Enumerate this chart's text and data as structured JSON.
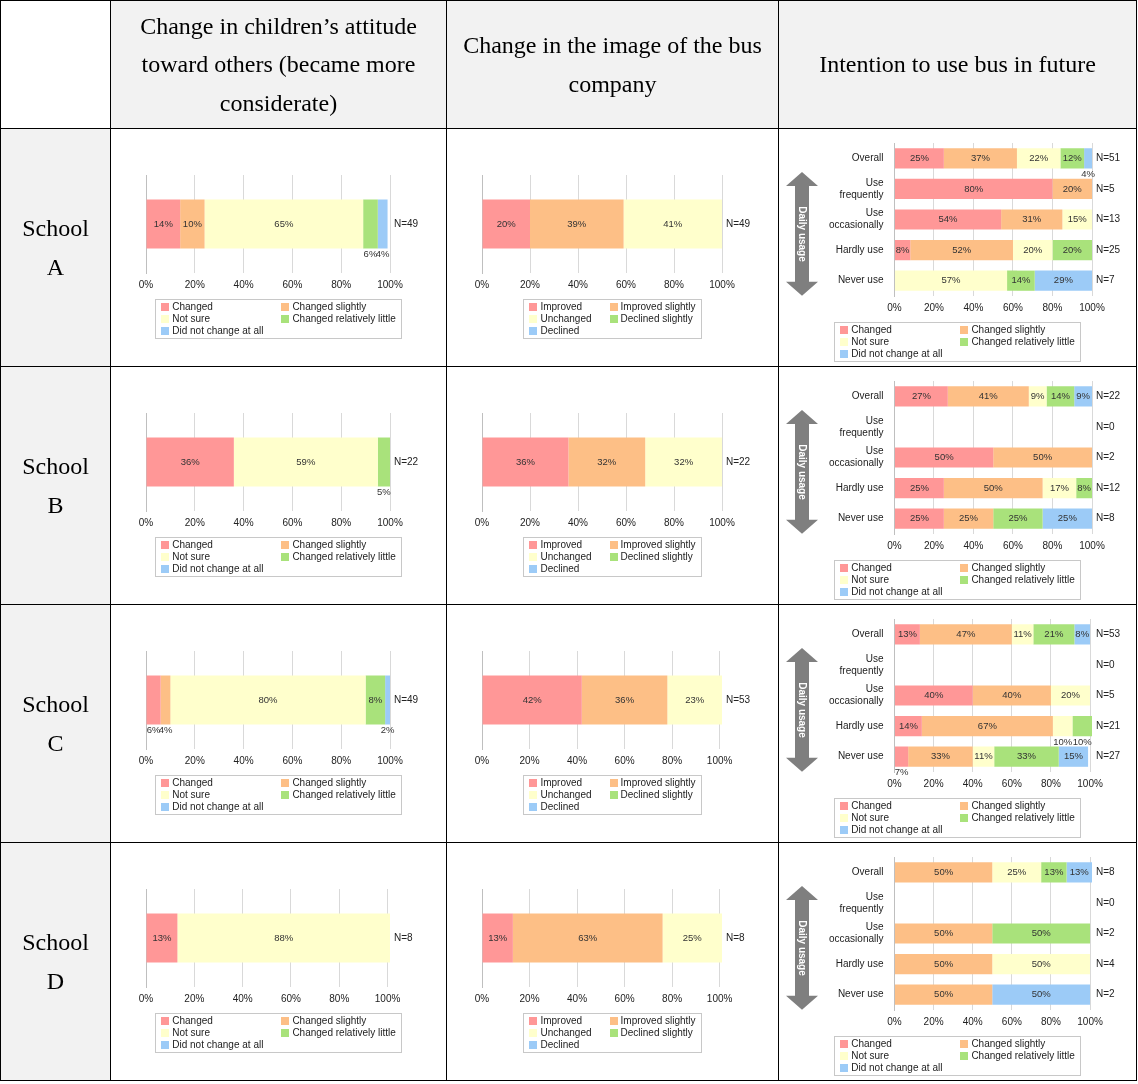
{
  "chart_data": [
    {
      "type": "other",
      "categories": [
        "Change in children’s attitude toward others (became more considerate)",
        "Change in the image of the bus company",
        "Intention to use bus in future"
      ],
      "y_categories": [
        "School A",
        "School B",
        "School C",
        "School D"
      ]
    },
    {
      "type": "bar",
      "orientation": "horizontal",
      "stacked": true,
      "grid": "x",
      "legend": "bottom",
      "xlim": [
        0,
        100
      ],
      "xticks": [
        {
          "value": 0,
          "label": "0%"
        },
        {
          "value": 20,
          "label": "20%"
        },
        {
          "value": 40,
          "label": "40%"
        },
        {
          "value": 60,
          "label": "60%"
        },
        {
          "value": 80,
          "label": "80%"
        },
        {
          "value": 100,
          "label": "100%"
        }
      ],
      "categories": [
        null
      ],
      "annotations": [
        "N=49"
      ],
      "series": [
        {
          "name": "Changed",
          "color": "#ff9797",
          "values": [
            14
          ],
          "value_labels": [
            "14%"
          ]
        },
        {
          "name": "Changed slightly",
          "color": "#fdbf86",
          "values": [
            10
          ],
          "value_labels": [
            "10%"
          ]
        },
        {
          "name": "Not sure",
          "color": "#ffffcc",
          "values": [
            65
          ],
          "value_labels": [
            "65%"
          ]
        },
        {
          "name": "Changed relatively little",
          "color": "#a9e27b",
          "values": [
            6
          ],
          "value_labels": [
            "6%"
          ]
        },
        {
          "name": "Did not change at all",
          "color": "#9ccbf7",
          "values": [
            4
          ],
          "value_labels": [
            "4%"
          ]
        }
      ]
    },
    {
      "type": "bar",
      "orientation": "horizontal",
      "stacked": true,
      "grid": "x",
      "legend": "bottom",
      "xlim": [
        0,
        100
      ],
      "xticks": [
        {
          "value": 0,
          "label": "0%"
        },
        {
          "value": 20,
          "label": "20%"
        },
        {
          "value": 40,
          "label": "40%"
        },
        {
          "value": 60,
          "label": "60%"
        },
        {
          "value": 80,
          "label": "80%"
        },
        {
          "value": 100,
          "label": "100%"
        }
      ],
      "categories": [
        null
      ],
      "annotations": [
        "N=49"
      ],
      "series": [
        {
          "name": "Improved",
          "color": "#ff9797",
          "values": [
            20
          ],
          "value_labels": [
            "20%"
          ]
        },
        {
          "name": "Improved slightly",
          "color": "#fdbf86",
          "values": [
            39
          ],
          "value_labels": [
            "39%"
          ]
        },
        {
          "name": "Unchanged",
          "color": "#ffffcc",
          "values": [
            41
          ],
          "value_labels": [
            "41%"
          ]
        },
        {
          "name": "Declined slightly",
          "color": "#a9e27b",
          "values": [
            null
          ],
          "value_labels": [
            null
          ]
        },
        {
          "name": "Declined",
          "color": "#9ccbf7",
          "values": [
            null
          ],
          "value_labels": [
            null
          ]
        }
      ]
    },
    {
      "type": "bar",
      "orientation": "horizontal",
      "stacked": true,
      "grid": "x",
      "legend": "bottom",
      "ylabel": "Daily usage",
      "xlim": [
        0,
        100
      ],
      "xticks": [
        {
          "value": 0,
          "label": "0%"
        },
        {
          "value": 20,
          "label": "20%"
        },
        {
          "value": 40,
          "label": "40%"
        },
        {
          "value": 60,
          "label": "60%"
        },
        {
          "value": 80,
          "label": "80%"
        },
        {
          "value": 100,
          "label": "100%"
        }
      ],
      "categories": [
        "Overall",
        "Use frequently",
        "Use occasionally",
        "Hardly use",
        "Never use"
      ],
      "annotations": [
        "N=51",
        "N=5",
        "N=13",
        "N=25",
        "N=7"
      ],
      "series": [
        {
          "name": "Changed",
          "color": "#ff9797",
          "values": [
            25,
            80,
            54,
            8,
            null
          ],
          "value_labels": [
            "25%",
            "80%",
            "54%",
            "8%",
            null
          ]
        },
        {
          "name": "Changed slightly",
          "color": "#fdbf86",
          "values": [
            37,
            20,
            31,
            52,
            null
          ],
          "value_labels": [
            "37%",
            "20%",
            "31%",
            "52%",
            null
          ]
        },
        {
          "name": "Not sure",
          "color": "#ffffcc",
          "values": [
            22,
            null,
            15,
            20,
            57
          ],
          "value_labels": [
            "22%",
            null,
            "15%",
            "20%",
            "57%"
          ]
        },
        {
          "name": "Changed relatively little",
          "color": "#a9e27b",
          "values": [
            12,
            null,
            null,
            20,
            14
          ],
          "value_labels": [
            "12%",
            null,
            null,
            "20%",
            "14%"
          ]
        },
        {
          "name": "Did not change at all",
          "color": "#9ccbf7",
          "values": [
            4,
            null,
            null,
            null,
            29
          ],
          "value_labels": [
            "4%",
            null,
            null,
            null,
            "29%"
          ]
        }
      ]
    },
    {
      "type": "bar",
      "orientation": "horizontal",
      "stacked": true,
      "grid": "x",
      "legend": "bottom",
      "xlim": [
        0,
        100
      ],
      "xticks": [
        {
          "value": 0,
          "label": "0%"
        },
        {
          "value": 20,
          "label": "20%"
        },
        {
          "value": 40,
          "label": "40%"
        },
        {
          "value": 60,
          "label": "60%"
        },
        {
          "value": 80,
          "label": "80%"
        },
        {
          "value": 100,
          "label": "100%"
        }
      ],
      "categories": [
        null
      ],
      "annotations": [
        "N=22"
      ],
      "series": [
        {
          "name": "Changed",
          "color": "#ff9797",
          "values": [
            36
          ],
          "value_labels": [
            "36%"
          ]
        },
        {
          "name": "Changed slightly",
          "color": "#fdbf86",
          "values": [
            null
          ],
          "value_labels": [
            null
          ]
        },
        {
          "name": "Not sure",
          "color": "#ffffcc",
          "values": [
            59
          ],
          "value_labels": [
            "59%"
          ]
        },
        {
          "name": "Changed relatively little",
          "color": "#a9e27b",
          "values": [
            5
          ],
          "value_labels": [
            "5%"
          ]
        },
        {
          "name": "Did not change at all",
          "color": "#9ccbf7",
          "values": [
            null
          ],
          "value_labels": [
            null
          ]
        }
      ]
    },
    {
      "type": "bar",
      "orientation": "horizontal",
      "stacked": true,
      "grid": "x",
      "legend": "bottom",
      "xlim": [
        0,
        100
      ],
      "xticks": [
        {
          "value": 0,
          "label": "0%"
        },
        {
          "value": 20,
          "label": "20%"
        },
        {
          "value": 40,
          "label": "40%"
        },
        {
          "value": 60,
          "label": "60%"
        },
        {
          "value": 80,
          "label": "80%"
        },
        {
          "value": 100,
          "label": "100%"
        }
      ],
      "categories": [
        null
      ],
      "annotations": [
        "N=22"
      ],
      "series": [
        {
          "name": "Improved",
          "color": "#ff9797",
          "values": [
            36
          ],
          "value_labels": [
            "36%"
          ]
        },
        {
          "name": "Improved slightly",
          "color": "#fdbf86",
          "values": [
            32
          ],
          "value_labels": [
            "32%"
          ]
        },
        {
          "name": "Unchanged",
          "color": "#ffffcc",
          "values": [
            32
          ],
          "value_labels": [
            "32%"
          ]
        },
        {
          "name": "Declined slightly",
          "color": "#a9e27b",
          "values": [
            null
          ],
          "value_labels": [
            null
          ]
        },
        {
          "name": "Declined",
          "color": "#9ccbf7",
          "values": [
            null
          ],
          "value_labels": [
            null
          ]
        }
      ]
    },
    {
      "type": "bar",
      "orientation": "horizontal",
      "stacked": true,
      "grid": "x",
      "legend": "bottom",
      "ylabel": "Daily usage",
      "xlim": [
        0,
        100
      ],
      "xticks": [
        {
          "value": 0,
          "label": "0%"
        },
        {
          "value": 20,
          "label": "20%"
        },
        {
          "value": 40,
          "label": "40%"
        },
        {
          "value": 60,
          "label": "60%"
        },
        {
          "value": 80,
          "label": "80%"
        },
        {
          "value": 100,
          "label": "100%"
        }
      ],
      "categories": [
        "Overall",
        "Use frequently",
        "Use occasionally",
        "Hardly use",
        "Never use"
      ],
      "annotations": [
        "N=22",
        "N=0",
        "N=2",
        "N=12",
        "N=8"
      ],
      "series": [
        {
          "name": "Changed",
          "color": "#ff9797",
          "values": [
            27,
            null,
            50,
            25,
            25
          ],
          "value_labels": [
            "27%",
            null,
            "50%",
            "25%",
            "25%"
          ]
        },
        {
          "name": "Changed slightly",
          "color": "#fdbf86",
          "values": [
            41,
            null,
            50,
            50,
            25
          ],
          "value_labels": [
            "41%",
            null,
            "50%",
            "50%",
            "25%"
          ]
        },
        {
          "name": "Not sure",
          "color": "#ffffcc",
          "values": [
            9,
            null,
            null,
            17,
            null
          ],
          "value_labels": [
            "9%",
            null,
            null,
            "17%",
            null
          ]
        },
        {
          "name": "Changed relatively little",
          "color": "#a9e27b",
          "values": [
            14,
            null,
            null,
            8,
            25
          ],
          "value_labels": [
            "14%",
            null,
            null,
            "8%",
            "25%"
          ]
        },
        {
          "name": "Did not change at all",
          "color": "#9ccbf7",
          "values": [
            9,
            null,
            null,
            null,
            25
          ],
          "value_labels": [
            "9%",
            null,
            null,
            null,
            "25%"
          ]
        }
      ]
    },
    {
      "type": "bar",
      "orientation": "horizontal",
      "stacked": true,
      "grid": "x",
      "legend": "bottom",
      "xlim": [
        0,
        100
      ],
      "xticks": [
        {
          "value": 0,
          "label": "0%"
        },
        {
          "value": 20,
          "label": "20%"
        },
        {
          "value": 40,
          "label": "40%"
        },
        {
          "value": 60,
          "label": "60%"
        },
        {
          "value": 80,
          "label": "80%"
        },
        {
          "value": 100,
          "label": "100%"
        }
      ],
      "categories": [
        null
      ],
      "annotations": [
        "N=49"
      ],
      "series": [
        {
          "name": "Changed",
          "color": "#ff9797",
          "values": [
            6
          ],
          "value_labels": [
            "6%"
          ]
        },
        {
          "name": "Changed slightly",
          "color": "#fdbf86",
          "values": [
            4
          ],
          "value_labels": [
            "4%"
          ]
        },
        {
          "name": "Not sure",
          "color": "#ffffcc",
          "values": [
            80
          ],
          "value_labels": [
            "80%"
          ]
        },
        {
          "name": "Changed relatively little",
          "color": "#a9e27b",
          "values": [
            8
          ],
          "value_labels": [
            "8%"
          ]
        },
        {
          "name": "Did not change at all",
          "color": "#9ccbf7",
          "values": [
            2
          ],
          "value_labels": [
            "2%"
          ]
        }
      ]
    },
    {
      "type": "bar",
      "orientation": "horizontal",
      "stacked": true,
      "grid": "x",
      "legend": "bottom",
      "xlim": [
        0,
        101
      ],
      "xticks": [
        {
          "value": 0,
          "label": "0%"
        },
        {
          "value": 20,
          "label": "20%"
        },
        {
          "value": 40,
          "label": "40%"
        },
        {
          "value": 60,
          "label": "60%"
        },
        {
          "value": 80,
          "label": "80%"
        },
        {
          "value": 100,
          "label": "100%"
        }
      ],
      "categories": [
        null
      ],
      "annotations": [
        "N=53"
      ],
      "series": [
        {
          "name": "Improved",
          "color": "#ff9797",
          "values": [
            42
          ],
          "value_labels": [
            "42%"
          ]
        },
        {
          "name": "Improved slightly",
          "color": "#fdbf86",
          "values": [
            36
          ],
          "value_labels": [
            "36%"
          ]
        },
        {
          "name": "Unchanged",
          "color": "#ffffcc",
          "values": [
            23
          ],
          "value_labels": [
            "23%"
          ]
        },
        {
          "name": "Declined slightly",
          "color": "#a9e27b",
          "values": [
            null
          ],
          "value_labels": [
            null
          ]
        },
        {
          "name": "Declined",
          "color": "#9ccbf7",
          "values": [
            null
          ],
          "value_labels": [
            null
          ]
        }
      ]
    },
    {
      "type": "bar",
      "orientation": "horizontal",
      "stacked": true,
      "grid": "x",
      "legend": "bottom",
      "ylabel": "Daily usage",
      "xlim": [
        0,
        101
      ],
      "xticks": [
        {
          "value": 0,
          "label": "0%"
        },
        {
          "value": 20,
          "label": "20%"
        },
        {
          "value": 40,
          "label": "40%"
        },
        {
          "value": 60,
          "label": "60%"
        },
        {
          "value": 80,
          "label": "80%"
        },
        {
          "value": 100,
          "label": "100%"
        }
      ],
      "categories": [
        "Overall",
        "Use frequently",
        "Use occasionally",
        "Hardly use",
        "Never use"
      ],
      "annotations": [
        "N=53",
        "N=0",
        "N=5",
        "N=21",
        "N=27"
      ],
      "series": [
        {
          "name": "Changed",
          "color": "#ff9797",
          "values": [
            13,
            null,
            40,
            14,
            7
          ],
          "value_labels": [
            "13%",
            null,
            "40%",
            "14%",
            "7%"
          ]
        },
        {
          "name": "Changed slightly",
          "color": "#fdbf86",
          "values": [
            47,
            null,
            40,
            67,
            33
          ],
          "value_labels": [
            "47%",
            null,
            "40%",
            "67%",
            "33%"
          ]
        },
        {
          "name": "Not sure",
          "color": "#ffffcc",
          "values": [
            11,
            null,
            20,
            10,
            11
          ],
          "value_labels": [
            "11%",
            null,
            "20%",
            "10%",
            "11%"
          ]
        },
        {
          "name": "Changed relatively little",
          "color": "#a9e27b",
          "values": [
            21,
            null,
            null,
            10,
            33
          ],
          "value_labels": [
            "21%",
            null,
            null,
            "10%",
            "33%"
          ]
        },
        {
          "name": "Did not change at all",
          "color": "#9ccbf7",
          "values": [
            8,
            null,
            null,
            null,
            15
          ],
          "value_labels": [
            "8%",
            null,
            null,
            null,
            "15%"
          ]
        }
      ]
    },
    {
      "type": "bar",
      "orientation": "horizontal",
      "stacked": true,
      "grid": "x",
      "legend": "bottom",
      "xlim": [
        0,
        101
      ],
      "xticks": [
        {
          "value": 0,
          "label": "0%"
        },
        {
          "value": 20,
          "label": "20%"
        },
        {
          "value": 40,
          "label": "40%"
        },
        {
          "value": 60,
          "label": "60%"
        },
        {
          "value": 80,
          "label": "80%"
        },
        {
          "value": 100,
          "label": "100%"
        }
      ],
      "categories": [
        null
      ],
      "annotations": [
        "N=8"
      ],
      "series": [
        {
          "name": "Changed",
          "color": "#ff9797",
          "values": [
            13
          ],
          "value_labels": [
            "13%"
          ]
        },
        {
          "name": "Changed slightly",
          "color": "#fdbf86",
          "values": [
            null
          ],
          "value_labels": [
            null
          ]
        },
        {
          "name": "Not sure",
          "color": "#ffffcc",
          "values": [
            88
          ],
          "value_labels": [
            "88%"
          ]
        },
        {
          "name": "Changed relatively little",
          "color": "#a9e27b",
          "values": [
            null
          ],
          "value_labels": [
            null
          ]
        },
        {
          "name": "Did not change at all",
          "color": "#9ccbf7",
          "values": [
            null
          ],
          "value_labels": [
            null
          ]
        }
      ]
    },
    {
      "type": "bar",
      "orientation": "horizontal",
      "stacked": true,
      "grid": "x",
      "legend": "bottom",
      "xlim": [
        0,
        101
      ],
      "xticks": [
        {
          "value": 0,
          "label": "0%"
        },
        {
          "value": 20,
          "label": "20%"
        },
        {
          "value": 40,
          "label": "40%"
        },
        {
          "value": 60,
          "label": "60%"
        },
        {
          "value": 80,
          "label": "80%"
        },
        {
          "value": 100,
          "label": "100%"
        }
      ],
      "categories": [
        null
      ],
      "annotations": [
        "N=8"
      ],
      "series": [
        {
          "name": "Improved",
          "color": "#ff9797",
          "values": [
            13
          ],
          "value_labels": [
            "13%"
          ]
        },
        {
          "name": "Improved slightly",
          "color": "#fdbf86",
          "values": [
            63
          ],
          "value_labels": [
            "63%"
          ]
        },
        {
          "name": "Unchanged",
          "color": "#ffffcc",
          "values": [
            25
          ],
          "value_labels": [
            "25%"
          ]
        },
        {
          "name": "Declined slightly",
          "color": "#a9e27b",
          "values": [
            null
          ],
          "value_labels": [
            null
          ]
        },
        {
          "name": "Declined",
          "color": "#9ccbf7",
          "values": [
            null
          ],
          "value_labels": [
            null
          ]
        }
      ]
    },
    {
      "type": "bar",
      "orientation": "horizontal",
      "stacked": true,
      "grid": "x",
      "legend": "bottom",
      "ylabel": "Daily usage",
      "xlim": [
        0,
        101
      ],
      "xticks": [
        {
          "value": 0,
          "label": "0%"
        },
        {
          "value": 20,
          "label": "20%"
        },
        {
          "value": 40,
          "label": "40%"
        },
        {
          "value": 60,
          "label": "60%"
        },
        {
          "value": 80,
          "label": "80%"
        },
        {
          "value": 100,
          "label": "100%"
        }
      ],
      "categories": [
        "Overall",
        "Use frequently",
        "Use occasionally",
        "Hardly use",
        "Never use"
      ],
      "annotations": [
        "N=8",
        "N=0",
        "N=2",
        "N=4",
        "N=2"
      ],
      "series": [
        {
          "name": "Changed",
          "color": "#ff9797",
          "values": [
            null,
            null,
            null,
            null,
            null
          ],
          "value_labels": [
            null,
            null,
            null,
            null,
            null
          ]
        },
        {
          "name": "Changed slightly",
          "color": "#fdbf86",
          "values": [
            50,
            null,
            50,
            50,
            50
          ],
          "value_labels": [
            "50%",
            null,
            "50%",
            "50%",
            "50%"
          ]
        },
        {
          "name": "Not sure",
          "color": "#ffffcc",
          "values": [
            25,
            null,
            null,
            50,
            null
          ],
          "value_labels": [
            "25%",
            null,
            null,
            "50%",
            null
          ]
        },
        {
          "name": "Changed relatively little",
          "color": "#a9e27b",
          "values": [
            13,
            null,
            50,
            null,
            null
          ],
          "value_labels": [
            "13%",
            null,
            "50%",
            null,
            null
          ]
        },
        {
          "name": "Did not change at all",
          "color": "#9ccbf7",
          "values": [
            13,
            null,
            null,
            null,
            50
          ],
          "value_labels": [
            "13%",
            null,
            null,
            null,
            "50%"
          ]
        }
      ]
    }
  ]
}
